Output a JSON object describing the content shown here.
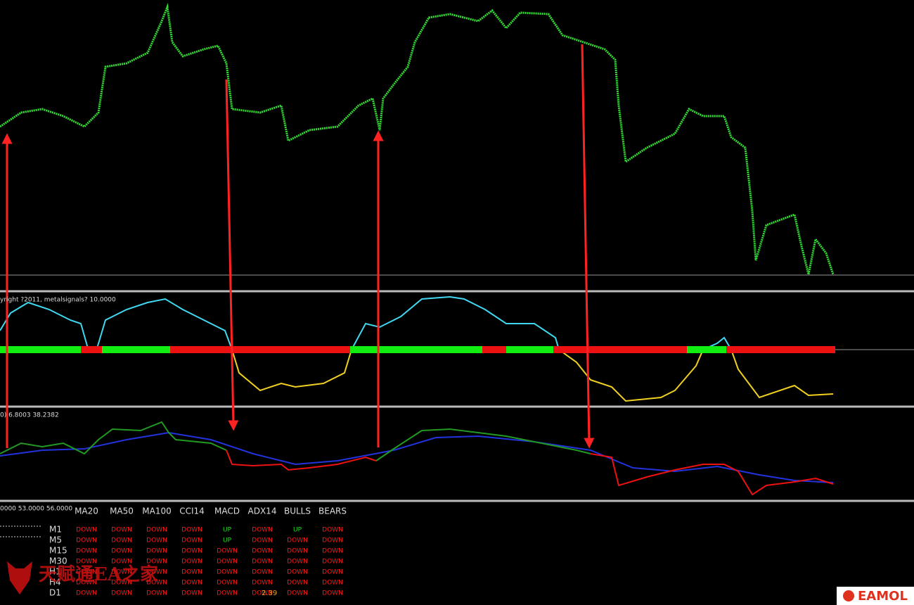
{
  "panel_labels": [
    "yright ?2011, metalsignals? 10.0000",
    "0) 6.8003 38.2382",
    "0000 53.0000 56.0000"
  ],
  "table": {
    "headers": [
      "MA20",
      "MA50",
      "MA100",
      "CCI14",
      "MACD",
      "ADX14",
      "BULLS",
      "BEARS"
    ],
    "rows": [
      {
        "label": "M1",
        "cells": [
          {
            "text": "DOWN",
            "color": "#ff1a1a"
          },
          {
            "text": "DOWN",
            "color": "#ff1a1a"
          },
          {
            "text": "DOWN",
            "color": "#ff1a1a"
          },
          {
            "text": "DOWN",
            "color": "#ff1a1a"
          },
          {
            "text": "UP",
            "color": "#22dd22"
          },
          {
            "text": "DOWN",
            "color": "#ff1a1a"
          },
          {
            "text": "UP",
            "color": "#22dd22"
          },
          {
            "text": "DOWN",
            "color": "#ff1a1a"
          }
        ]
      },
      {
        "label": "M5",
        "cells": [
          {
            "text": "DOWN",
            "color": "#ff1a1a"
          },
          {
            "text": "DOWN",
            "color": "#ff1a1a"
          },
          {
            "text": "DOWN",
            "color": "#ff1a1a"
          },
          {
            "text": "DOWN",
            "color": "#ff1a1a"
          },
          {
            "text": "UP",
            "color": "#22dd22"
          },
          {
            "text": "DOWN",
            "color": "#ff1a1a"
          },
          {
            "text": "DOWN",
            "color": "#ff1a1a"
          },
          {
            "text": "DOWN",
            "color": "#ff1a1a"
          }
        ]
      },
      {
        "label": "M15",
        "cells": [
          {
            "text": "DOWN",
            "color": "#ff1a1a"
          },
          {
            "text": "DOWN",
            "color": "#ff1a1a"
          },
          {
            "text": "DOWN",
            "color": "#ff1a1a"
          },
          {
            "text": "DOWN",
            "color": "#ff1a1a"
          },
          {
            "text": "DOWN",
            "color": "#ff1a1a"
          },
          {
            "text": "DOWN",
            "color": "#ff1a1a"
          },
          {
            "text": "DOWN",
            "color": "#ff1a1a"
          },
          {
            "text": "DOWN",
            "color": "#ff1a1a"
          }
        ]
      },
      {
        "label": "M30",
        "cells": [
          {
            "text": "DOWN",
            "color": "#ff1a1a"
          },
          {
            "text": "DOWN",
            "color": "#ff1a1a"
          },
          {
            "text": "DOWN",
            "color": "#ff1a1a"
          },
          {
            "text": "DOWN",
            "color": "#ff1a1a"
          },
          {
            "text": "DOWN",
            "color": "#ff1a1a"
          },
          {
            "text": "DOWN",
            "color": "#ff1a1a"
          },
          {
            "text": "DOWN",
            "color": "#ff1a1a"
          },
          {
            "text": "DOWN",
            "color": "#ff1a1a"
          }
        ]
      },
      {
        "label": "H1",
        "cells": [
          {
            "text": "DOWN",
            "color": "#ff1a1a"
          },
          {
            "text": "DOWN",
            "color": "#ff1a1a"
          },
          {
            "text": "DOWN",
            "color": "#ff1a1a"
          },
          {
            "text": "DOWN",
            "color": "#ff1a1a"
          },
          {
            "text": "DOWN",
            "color": "#ff1a1a"
          },
          {
            "text": "DOWN",
            "color": "#ff1a1a"
          },
          {
            "text": "DOWN",
            "color": "#ff1a1a"
          },
          {
            "text": "DOWN",
            "color": "#ff1a1a"
          }
        ]
      },
      {
        "label": "H4",
        "cells": [
          {
            "text": "DOWN",
            "color": "#ff1a1a"
          },
          {
            "text": "DOWN",
            "color": "#ff1a1a"
          },
          {
            "text": "DOWN",
            "color": "#ff1a1a"
          },
          {
            "text": "DOWN",
            "color": "#ff1a1a"
          },
          {
            "text": "DOWN",
            "color": "#ff1a1a"
          },
          {
            "text": "DOWN",
            "color": "#ff1a1a"
          },
          {
            "text": "DOWN",
            "color": "#ff1a1a"
          },
          {
            "text": "DOWN",
            "color": "#ff1a1a"
          }
        ]
      },
      {
        "label": "D1",
        "cells": [
          {
            "text": "DOWN",
            "color": "#ff1a1a"
          },
          {
            "text": "DOWN",
            "color": "#ff1a1a"
          },
          {
            "text": "DOWN",
            "color": "#ff1a1a"
          },
          {
            "text": "DOWN",
            "color": "#ff1a1a"
          },
          {
            "text": "DOWN",
            "color": "#ff1a1a"
          },
          {
            "text": "DOWN",
            "color": "#ff1a1a"
          },
          {
            "text": "DOWN",
            "color": "#ff1a1a"
          },
          {
            "text": "DOWN",
            "color": "#ff1a1a"
          }
        ]
      }
    ]
  },
  "overlay_value": "2.39",
  "watermark": "天赋通EA之家",
  "brand": "EAMOL"
}
